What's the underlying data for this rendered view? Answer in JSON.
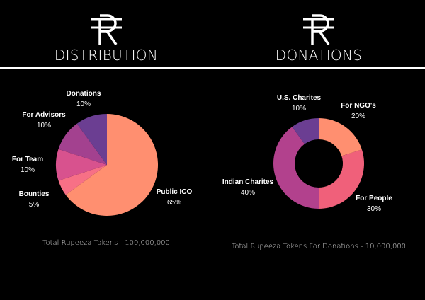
{
  "panels": [
    {
      "title": "DISTRIBUTION",
      "footnote": "Total Rupeeza Tokens - 100,000,000",
      "chart_data": {
        "type": "pie",
        "title": "DISTRIBUTION",
        "categories": [
          "Public ICO",
          "Bounties",
          "For Team",
          "For Advisors",
          "Donations"
        ],
        "values": [
          65,
          5,
          10,
          10,
          10
        ],
        "value_labels": [
          "65%",
          "5%",
          "10%",
          "10%",
          "10%"
        ],
        "colors": [
          "#FF8F70",
          "#F77086",
          "#D8528E",
          "#A3418F",
          "#6B3E92"
        ],
        "legend": "none"
      }
    },
    {
      "title": "DONATIONS",
      "footnote": "Total Rupeeza Tokens For Donations - 10,000,000",
      "chart_data": {
        "type": "pie",
        "style": "donut",
        "title": "DONATIONS",
        "categories": [
          "For NGO's",
          "For People",
          "Indian Charites",
          "U.S. Charites"
        ],
        "values": [
          20,
          30,
          40,
          10
        ],
        "value_labels": [
          "20%",
          "30%",
          "40%",
          "10%"
        ],
        "colors": [
          "#FF8F70",
          "#F0607A",
          "#B2418D",
          "#6B3E92"
        ],
        "legend": "none"
      }
    }
  ]
}
